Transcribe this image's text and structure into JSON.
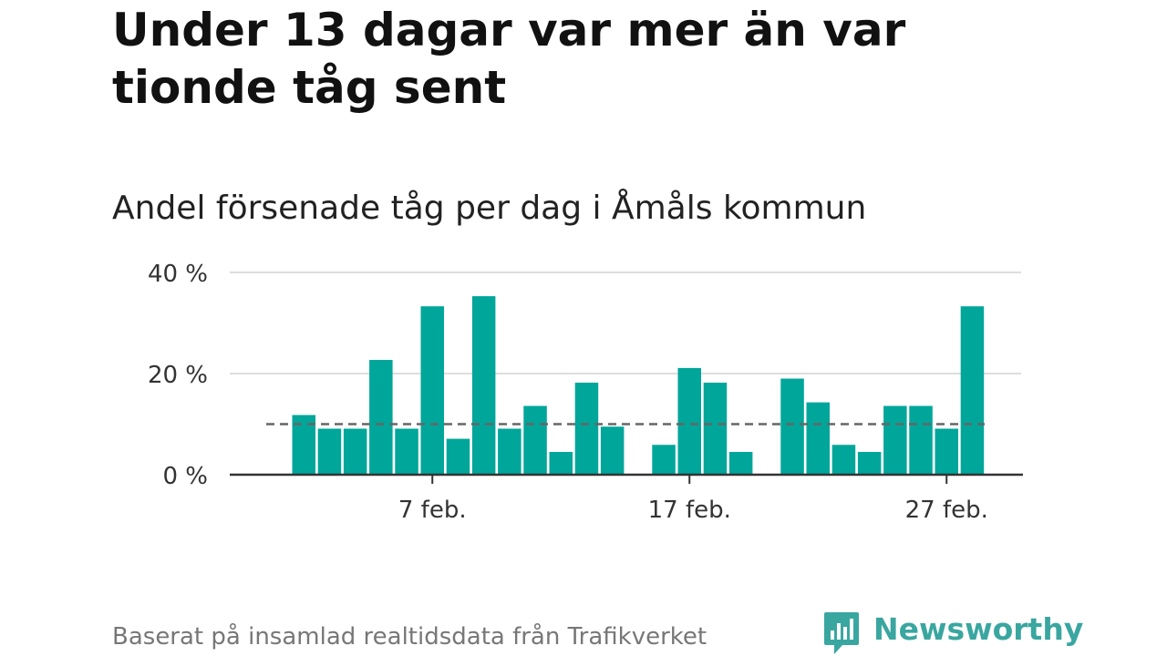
{
  "title": "Under 13 dagar var mer än var tionde tåg sent",
  "subtitle": "Andel försenade tåg per dag i Åmåls kommun",
  "footer": "Baserat på insamlad realtidsdata från Trafikverket",
  "brand": {
    "name": "Newsworthy",
    "icon": "newsworthy-logo-icon",
    "color": "#3aa6a0"
  },
  "colors": {
    "bar": "#00a69a",
    "reference_line": "#666666",
    "grid": "#dddddd",
    "axis": "#333333"
  },
  "chart_data": {
    "type": "bar",
    "x": [
      "2 feb.",
      "3 feb.",
      "4 feb.",
      "5 feb.",
      "6 feb.",
      "7 feb.",
      "8 feb.",
      "9 feb.",
      "10 feb.",
      "11 feb.",
      "12 feb.",
      "13 feb.",
      "14 feb.",
      "15 feb.",
      "16 feb.",
      "17 feb.",
      "18 feb.",
      "19 feb.",
      "20 feb.",
      "21 feb.",
      "22 feb.",
      "23 feb.",
      "24 feb.",
      "25 feb.",
      "26 feb.",
      "27 feb.",
      "28 feb."
    ],
    "values": [
      11.8,
      9.1,
      9.1,
      22.7,
      9.1,
      33.3,
      7.1,
      35.3,
      9.1,
      13.6,
      4.5,
      18.2,
      9.5,
      null,
      5.9,
      21.1,
      18.2,
      4.5,
      null,
      19.0,
      14.3,
      5.9,
      4.5,
      13.6,
      13.6,
      9.1,
      33.3
    ],
    "ylim": [
      0,
      40
    ],
    "yticks": [
      0,
      20,
      40
    ],
    "ytick_labels": [
      "0 %",
      "20 %",
      "40 %"
    ],
    "xticks": [
      "7 feb.",
      "17 feb.",
      "27 feb."
    ],
    "reference_line": {
      "value": 10,
      "style": "dashed"
    },
    "grid": true
  }
}
